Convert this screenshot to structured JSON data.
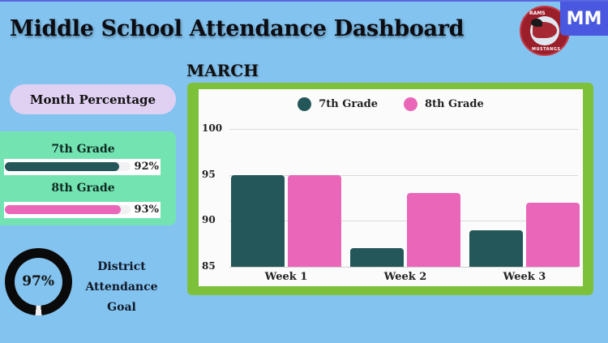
{
  "header": {
    "title": "Middle School Attendance Dashboard",
    "badge": "MM",
    "logo": {
      "top_text": "RAMS",
      "bottom_text": "MUSTANGS",
      "icon": "mustang-logo-icon"
    }
  },
  "month_percentage": {
    "label": "Month Percentage",
    "grades": [
      {
        "label": "7th Grade",
        "value": 92,
        "value_text": "92%",
        "color": "#245759"
      },
      {
        "label": "8th Grade",
        "value": 93,
        "value_text": "93%",
        "color": "#ea66b9"
      }
    ]
  },
  "district_goal": {
    "value": 97,
    "value_text": "97%",
    "label_lines": [
      "District",
      "Attendance",
      "Goal"
    ],
    "ring_color": "#0a0a0a"
  },
  "chart_section": {
    "heading": "MARCH"
  },
  "colors": {
    "background": "#83c3ef",
    "chart_frame": "#7dc13b",
    "seventh_grade": "#245759",
    "eighth_grade": "#ea66b9",
    "badge": "#4a57df"
  },
  "chart_data": {
    "type": "bar",
    "title": "MARCH",
    "categories": [
      "Week 1",
      "Week 2",
      "Week 3"
    ],
    "series": [
      {
        "name": "7th Grade",
        "values": [
          95,
          87,
          89
        ],
        "color": "#245759"
      },
      {
        "name": "8th Grade",
        "values": [
          95,
          93,
          92
        ],
        "color": "#ea66b9"
      }
    ],
    "xlabel": "",
    "ylabel": "",
    "ylim": [
      85,
      100
    ],
    "yticks": [
      85,
      90,
      95,
      100
    ],
    "grid": true,
    "legend_position": "top"
  }
}
